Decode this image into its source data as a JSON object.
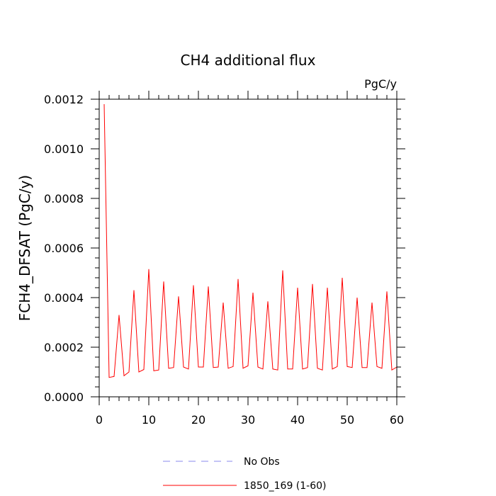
{
  "chart_data": {
    "type": "line",
    "title": "CH4 additional flux",
    "units_label": "PgC/y",
    "ylabel": "FCH4_DFSAT  (PgC/y)",
    "xlabel": "",
    "xlim": [
      0,
      60
    ],
    "ylim": [
      0,
      0.0012
    ],
    "x_ticks": [
      0,
      10,
      20,
      30,
      40,
      50,
      60
    ],
    "x_tick_labels": [
      "0",
      "10",
      "20",
      "30",
      "40",
      "50",
      "60"
    ],
    "y_ticks": [
      0,
      0.0002,
      0.0004,
      0.0006,
      0.0008,
      0.001,
      0.0012
    ],
    "y_tick_labels": [
      "0.0000",
      "0.0002",
      "0.0004",
      "0.0006",
      "0.0008",
      "0.0010",
      "0.0012"
    ],
    "grid": false,
    "legend_position": "bottom",
    "series": [
      {
        "name": "No Obs",
        "color": "#8888ee",
        "style": "dashed",
        "x": [],
        "values": []
      },
      {
        "name": "1850_169 (1-60)",
        "color": "#ff0000",
        "style": "solid",
        "x": [
          1,
          2,
          3,
          4,
          5,
          6,
          7,
          8,
          9,
          10,
          11,
          12,
          13,
          14,
          15,
          16,
          17,
          18,
          19,
          20,
          21,
          22,
          23,
          24,
          25,
          26,
          27,
          28,
          29,
          30,
          31,
          32,
          33,
          34,
          35,
          36,
          37,
          38,
          39,
          40,
          41,
          42,
          43,
          44,
          45,
          46,
          47,
          48,
          49,
          50,
          51,
          52,
          53,
          54,
          55,
          56,
          57,
          58,
          59,
          60
        ],
        "values": [
          0.00118,
          7.8e-05,
          8.2e-05,
          0.00033,
          8.5e-05,
          0.0001,
          0.00043,
          0.0001,
          0.00011,
          0.000515,
          0.000105,
          0.000108,
          0.000465,
          0.000115,
          0.000118,
          0.000405,
          0.00012,
          0.000112,
          0.00045,
          0.00012,
          0.00012,
          0.000445,
          0.000118,
          0.00012,
          0.00038,
          0.000115,
          0.000122,
          0.000475,
          0.000115,
          0.000125,
          0.00042,
          0.00012,
          0.000112,
          0.000385,
          0.000112,
          0.000108,
          0.00051,
          0.000112,
          0.000112,
          0.00044,
          0.000112,
          0.000118,
          0.000455,
          0.000115,
          0.000108,
          0.00044,
          0.000112,
          0.000122,
          0.00048,
          0.000122,
          0.000118,
          0.0004,
          0.000118,
          0.000118,
          0.00038,
          0.000122,
          0.000115,
          0.000425,
          0.000108,
          0.00012
        ]
      }
    ]
  }
}
